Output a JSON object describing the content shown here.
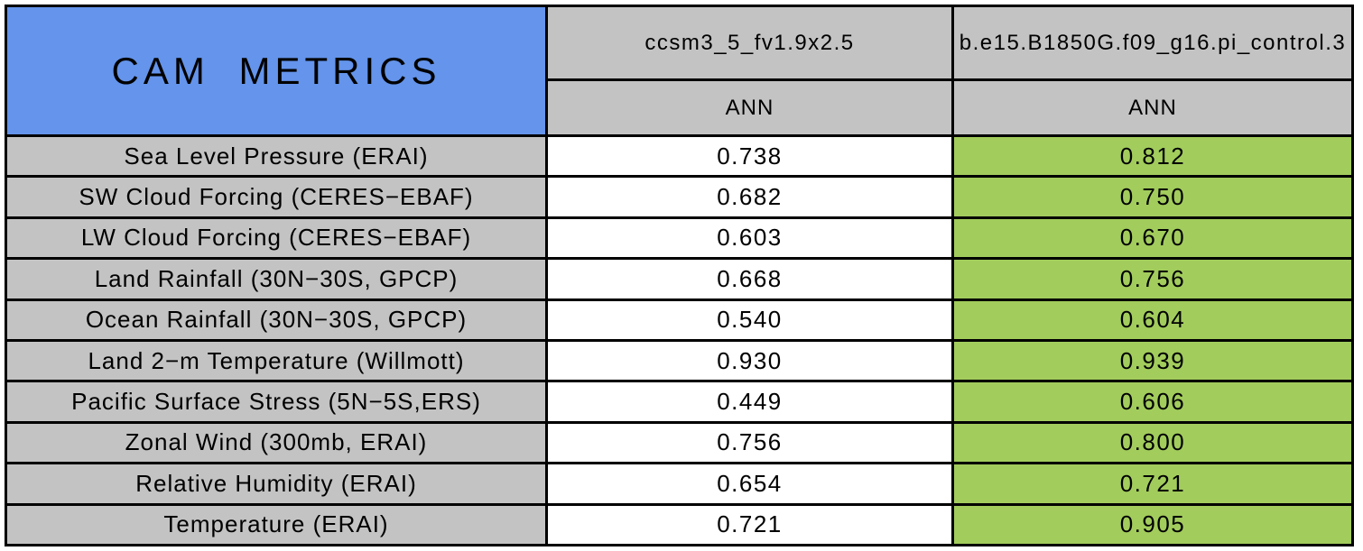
{
  "chart_data": {
    "type": "table",
    "title": "CAM METRICS",
    "column_groups": [
      {
        "model": "ccsm3_5_fv1.9x2.5",
        "season": "ANN"
      },
      {
        "model": "b.e15.B1850G.f09_g16.pi_control.3",
        "season": "ANN"
      }
    ],
    "rows": [
      {
        "metric": "Sea Level Pressure (ERAI)",
        "values": [
          "0.738",
          "0.812"
        ]
      },
      {
        "metric": "SW Cloud Forcing (CERES−EBAF)",
        "values": [
          "0.682",
          "0.750"
        ]
      },
      {
        "metric": "LW Cloud Forcing (CERES−EBAF)",
        "values": [
          "0.603",
          "0.670"
        ]
      },
      {
        "metric": "Land Rainfall (30N−30S, GPCP)",
        "values": [
          "0.668",
          "0.756"
        ]
      },
      {
        "metric": "Ocean Rainfall (30N−30S, GPCP)",
        "values": [
          "0.540",
          "0.604"
        ]
      },
      {
        "metric": "Land 2−m Temperature (Willmott)",
        "values": [
          "0.930",
          "0.939"
        ]
      },
      {
        "metric": "Pacific Surface Stress (5N−5S,ERS)",
        "values": [
          "0.449",
          "0.606"
        ]
      },
      {
        "metric": "Zonal Wind (300mb, ERAI)",
        "values": [
          "0.756",
          "0.800"
        ]
      },
      {
        "metric": "Relative Humidity (ERAI)",
        "values": [
          "0.654",
          "0.721"
        ]
      },
      {
        "metric": "Temperature (ERAI)",
        "values": [
          "0.721",
          "0.905"
        ]
      }
    ],
    "layout": {
      "legend": "none",
      "grid_lines": "black cell borders"
    },
    "colors": {
      "title_bg": "#6494eb",
      "header_bg": "#c3c3c3",
      "metric_label_bg": "#c3c3c3",
      "model1_value_bg": "#ffffff",
      "model2_value_bg": "#a2cc5c",
      "border": "#000000",
      "text": "#000000",
      "page_bg": "#ffffff"
    }
  }
}
